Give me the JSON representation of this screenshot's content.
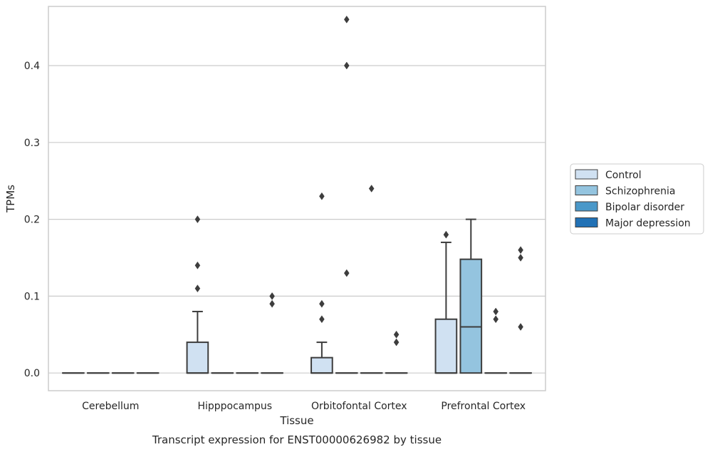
{
  "chart_data": {
    "type": "box",
    "caption": "Transcript expression for ENST00000626982 by tissue",
    "xlabel": "Tissue",
    "ylabel": "TPMs",
    "ylim": [
      -0.023,
      0.477
    ],
    "yticks": [
      0.0,
      0.1,
      0.2,
      0.3,
      0.4
    ],
    "ytick_labels": [
      "0.0",
      "0.1",
      "0.2",
      "0.3",
      "0.4"
    ],
    "grid": "horizontal",
    "legend_position": "right",
    "categories": [
      "Cerebellum",
      "Hipppocampus",
      "Orbitofontal Cortex",
      "Prefrontal Cortex"
    ],
    "series": [
      {
        "name": "Control",
        "color": "#d0e1f2",
        "boxes": [
          {
            "q1": 0.0,
            "median": 0.0,
            "q3": 0.0,
            "whisker_low": 0.0,
            "whisker_high": 0.0,
            "outliers": []
          },
          {
            "q1": 0.0,
            "median": 0.0,
            "q3": 0.04,
            "whisker_low": 0.0,
            "whisker_high": 0.08,
            "outliers": [
              0.2,
              0.14,
              0.11
            ]
          },
          {
            "q1": 0.0,
            "median": 0.0,
            "q3": 0.02,
            "whisker_low": 0.0,
            "whisker_high": 0.04,
            "outliers": [
              0.23,
              0.09,
              0.07
            ]
          },
          {
            "q1": 0.0,
            "median": 0.0,
            "q3": 0.07,
            "whisker_low": 0.0,
            "whisker_high": 0.17,
            "outliers": [
              0.18
            ]
          }
        ]
      },
      {
        "name": "Schizophrenia",
        "color": "#94c4df",
        "boxes": [
          {
            "q1": 0.0,
            "median": 0.0,
            "q3": 0.0,
            "whisker_low": 0.0,
            "whisker_high": 0.0,
            "outliers": []
          },
          {
            "q1": 0.0,
            "median": 0.0,
            "q3": 0.0,
            "whisker_low": 0.0,
            "whisker_high": 0.0,
            "outliers": []
          },
          {
            "q1": 0.0,
            "median": 0.0,
            "q3": 0.0,
            "whisker_low": 0.0,
            "whisker_high": 0.0,
            "outliers": [
              0.46,
              0.4,
              0.13
            ]
          },
          {
            "q1": 0.0,
            "median": 0.06,
            "q3": 0.148,
            "whisker_low": 0.0,
            "whisker_high": 0.2,
            "outliers": []
          }
        ]
      },
      {
        "name": "Bipolar disorder",
        "color": "#4a98c9",
        "boxes": [
          {
            "q1": 0.0,
            "median": 0.0,
            "q3": 0.0,
            "whisker_low": 0.0,
            "whisker_high": 0.0,
            "outliers": []
          },
          {
            "q1": 0.0,
            "median": 0.0,
            "q3": 0.0,
            "whisker_low": 0.0,
            "whisker_high": 0.0,
            "outliers": []
          },
          {
            "q1": 0.0,
            "median": 0.0,
            "q3": 0.0,
            "whisker_low": 0.0,
            "whisker_high": 0.0,
            "outliers": [
              0.24
            ]
          },
          {
            "q1": 0.0,
            "median": 0.0,
            "q3": 0.0,
            "whisker_low": 0.0,
            "whisker_high": 0.0,
            "outliers": [
              0.08,
              0.07
            ]
          }
        ]
      },
      {
        "name": "Major depression",
        "color": "#2171b5",
        "boxes": [
          {
            "q1": 0.0,
            "median": 0.0,
            "q3": 0.0,
            "whisker_low": 0.0,
            "whisker_high": 0.0,
            "outliers": []
          },
          {
            "q1": 0.0,
            "median": 0.0,
            "q3": 0.0,
            "whisker_low": 0.0,
            "whisker_high": 0.0,
            "outliers": [
              0.1,
              0.09
            ]
          },
          {
            "q1": 0.0,
            "median": 0.0,
            "q3": 0.0,
            "whisker_low": 0.0,
            "whisker_high": 0.0,
            "outliers": [
              0.05,
              0.04
            ]
          },
          {
            "q1": 0.0,
            "median": 0.0,
            "q3": 0.0,
            "whisker_low": 0.0,
            "whisker_high": 0.0,
            "outliers": [
              0.16,
              0.15,
              0.06
            ]
          }
        ]
      }
    ],
    "colors": {
      "grid": "#cccccc",
      "spine": "#cccccc",
      "box_edge": "#3d3d3d"
    }
  }
}
